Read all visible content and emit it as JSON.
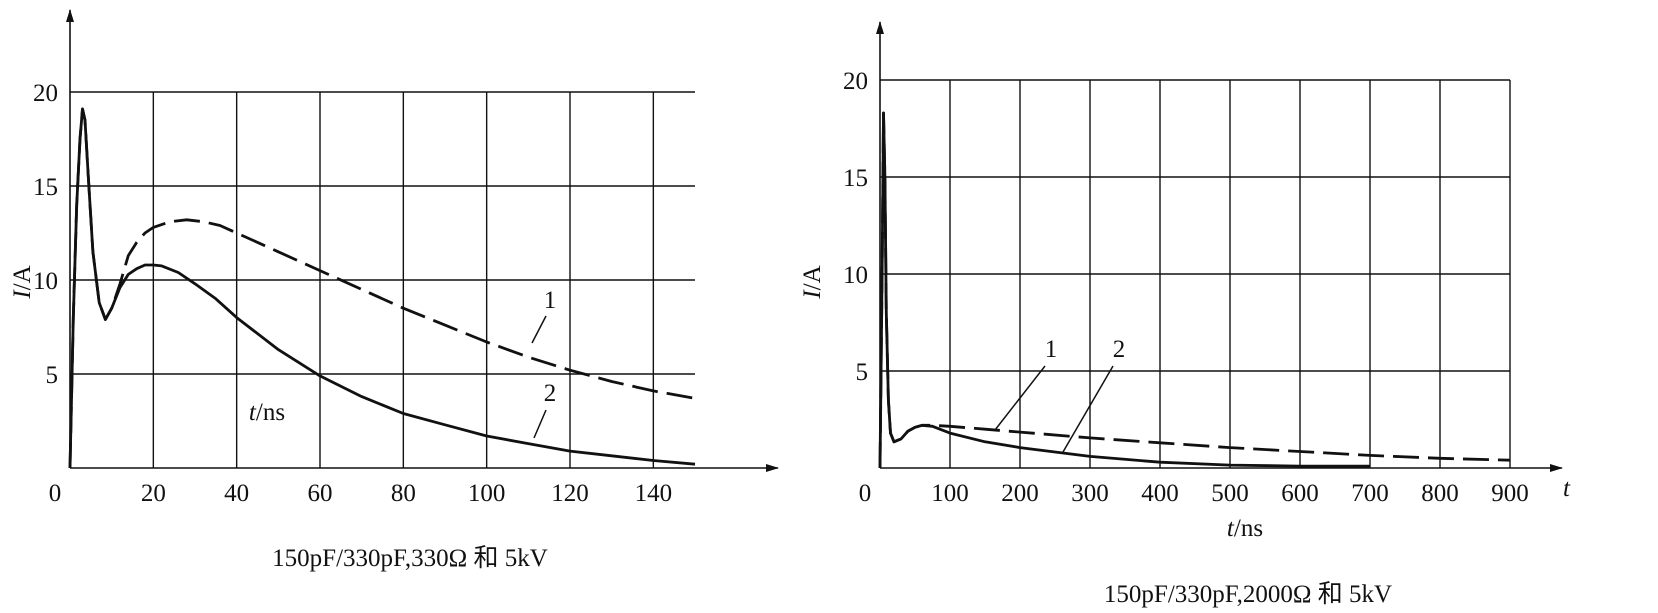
{
  "chart_data": [
    {
      "type": "line",
      "caption": "150pF/330pF,330Ω 和 5kV",
      "xlabel_italic": "t",
      "xlabel_rest": "/ns",
      "ylabel_italic": "I",
      "ylabel_rest": "/A",
      "x_origin_label": "0",
      "xticks": [
        20,
        40,
        60,
        80,
        100,
        120,
        140
      ],
      "yticks": [
        5,
        10,
        15,
        20
      ],
      "xlim": [
        0,
        150
      ],
      "ylim": [
        0,
        20
      ],
      "grid": true,
      "series": [
        {
          "tag": "1",
          "style": "dashed",
          "x": [
            0,
            0.8,
            1.6,
            2.4,
            3.0,
            3.6,
            4.4,
            5.5,
            7,
            8.5,
            10,
            12,
            14,
            16,
            18,
            20,
            24,
            28,
            32,
            36,
            40,
            50,
            60,
            70,
            80,
            90,
            100,
            110,
            120,
            130,
            140,
            150
          ],
          "y": [
            0,
            8,
            14,
            17.5,
            19.1,
            18.5,
            15.5,
            11.5,
            8.8,
            7.9,
            8.5,
            9.8,
            11.3,
            12.0,
            12.5,
            12.8,
            13.1,
            13.2,
            13.1,
            12.9,
            12.5,
            11.5,
            10.5,
            9.5,
            8.5,
            7.6,
            6.7,
            5.9,
            5.2,
            4.6,
            4.1,
            3.7
          ]
        },
        {
          "tag": "2",
          "style": "solid",
          "x": [
            0,
            0.8,
            1.6,
            2.4,
            3.0,
            3.6,
            4.4,
            5.5,
            7,
            8.5,
            10,
            12,
            14,
            16,
            18,
            20,
            22,
            26,
            30,
            35,
            40,
            50,
            60,
            70,
            80,
            90,
            100,
            110,
            120,
            130,
            140,
            150
          ],
          "y": [
            0,
            8,
            14,
            17.5,
            19.1,
            18.5,
            15.5,
            11.5,
            8.8,
            7.9,
            8.5,
            9.6,
            10.3,
            10.6,
            10.8,
            10.8,
            10.75,
            10.4,
            9.8,
            9.0,
            8.0,
            6.3,
            4.9,
            3.8,
            2.9,
            2.3,
            1.7,
            1.3,
            0.9,
            0.65,
            0.4,
            0.2
          ]
        }
      ]
    },
    {
      "type": "line",
      "caption": "150pF/330pF,2000Ω 和 5kV",
      "xlabel_italic": "t",
      "xlabel_rest": "/ns",
      "axis_end_label": "t",
      "ylabel_italic": "I",
      "ylabel_rest": "/A",
      "x_origin_label": "0",
      "xticks": [
        100,
        200,
        300,
        400,
        500,
        600,
        700,
        800,
        900
      ],
      "yticks": [
        5,
        10,
        15,
        20
      ],
      "xlim": [
        0,
        900
      ],
      "ylim": [
        0,
        20
      ],
      "grid": true,
      "series": [
        {
          "tag": "1",
          "style": "dashed",
          "x": [
            0,
            3,
            5,
            7,
            9,
            12,
            15,
            20,
            30,
            40,
            50,
            60,
            75,
            100,
            150,
            200,
            300,
            400,
            500,
            600,
            700,
            800,
            900
          ],
          "y": [
            0,
            10,
            18.3,
            15,
            8,
            3.5,
            1.8,
            1.35,
            1.5,
            1.9,
            2.1,
            2.2,
            2.2,
            2.15,
            2.0,
            1.85,
            1.55,
            1.3,
            1.05,
            0.85,
            0.65,
            0.5,
            0.4
          ]
        },
        {
          "tag": "2",
          "style": "solid",
          "x": [
            0,
            3,
            5,
            7,
            9,
            12,
            15,
            20,
            30,
            40,
            50,
            60,
            75,
            100,
            150,
            200,
            300,
            400,
            500,
            600,
            700
          ],
          "y": [
            0,
            10,
            18.3,
            15,
            8,
            3.5,
            1.8,
            1.35,
            1.5,
            1.9,
            2.1,
            2.2,
            2.15,
            1.8,
            1.35,
            1.05,
            0.6,
            0.3,
            0.15,
            0.1,
            0.1
          ]
        }
      ]
    }
  ]
}
